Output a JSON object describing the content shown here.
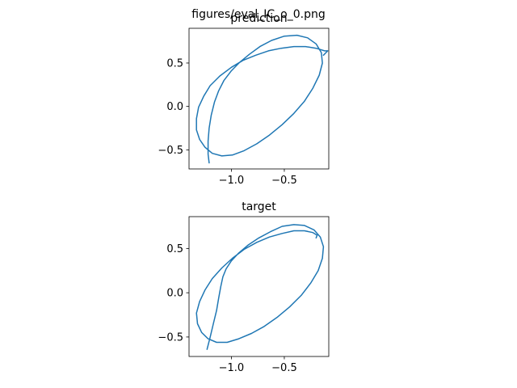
{
  "figure": {
    "suptitle": "figures/eval_IC_o_0.png"
  },
  "chart_data": [
    {
      "type": "line",
      "title": "prediction",
      "xlabel": "",
      "ylabel": "",
      "xlim": [
        -1.4,
        -0.08
      ],
      "ylim": [
        -0.72,
        0.9
      ],
      "xticks": [
        -1.0,
        -0.5
      ],
      "xtick_labels": [
        "−1.0",
        "−0.5"
      ],
      "yticks": [
        -0.5,
        0.0,
        0.5
      ],
      "ytick_labels": [
        "−0.5",
        "0.0",
        "0.5"
      ],
      "grid": false,
      "color": "#1f77b4",
      "series": [
        {
          "x": [
            -1.21,
            -1.22,
            -1.22,
            -1.21,
            -1.19,
            -1.16,
            -1.12,
            -1.07,
            -1.0,
            -0.92,
            -0.83,
            -0.73,
            -0.62,
            -0.5,
            -0.38,
            -0.28,
            -0.2,
            -0.15,
            -0.14,
            -0.17,
            -0.23,
            -0.31,
            -0.41,
            -0.52,
            -0.64,
            -0.76,
            -0.88,
            -0.99,
            -1.09,
            -1.18,
            -1.25,
            -1.3,
            -1.33,
            -1.33,
            -1.31,
            -1.26,
            -1.2,
            -1.11,
            -1.0,
            -0.89,
            -0.77,
            -0.65,
            -0.53,
            -0.41,
            -0.3,
            -0.2,
            -0.12,
            -0.09,
            -0.13
          ],
          "y": [
            -0.65,
            -0.55,
            -0.4,
            -0.25,
            -0.1,
            0.05,
            0.18,
            0.3,
            0.41,
            0.51,
            0.6,
            0.69,
            0.76,
            0.81,
            0.82,
            0.79,
            0.72,
            0.62,
            0.5,
            0.36,
            0.21,
            0.06,
            -0.08,
            -0.21,
            -0.33,
            -0.43,
            -0.51,
            -0.56,
            -0.57,
            -0.54,
            -0.47,
            -0.38,
            -0.27,
            -0.14,
            -0.01,
            0.12,
            0.24,
            0.35,
            0.45,
            0.53,
            0.59,
            0.64,
            0.67,
            0.69,
            0.69,
            0.67,
            0.64,
            0.64,
            0.59
          ]
        }
      ]
    },
    {
      "type": "line",
      "title": "target",
      "xlabel": "",
      "ylabel": "",
      "xlim": [
        -1.4,
        -0.08
      ],
      "ylim": [
        -0.72,
        0.86
      ],
      "xticks": [
        -1.0,
        -0.5
      ],
      "xtick_labels": [
        "−1.0",
        "−0.5"
      ],
      "yticks": [
        -0.5,
        0.0,
        0.5
      ],
      "ytick_labels": [
        "−0.5",
        "0.0",
        "0.5"
      ],
      "grid": false,
      "color": "#1f77b4",
      "series": [
        {
          "x": [
            -1.23,
            -1.2,
            -1.17,
            -1.14,
            -1.12,
            -1.1,
            -1.08,
            -1.05,
            -1.0,
            -0.93,
            -0.84,
            -0.74,
            -0.63,
            -0.52,
            -0.41,
            -0.31,
            -0.22,
            -0.16,
            -0.13,
            -0.14,
            -0.18,
            -0.25,
            -0.34,
            -0.45,
            -0.57,
            -0.69,
            -0.81,
            -0.93,
            -1.04,
            -1.14,
            -1.22,
            -1.28,
            -1.32,
            -1.33,
            -1.3,
            -1.25,
            -1.18,
            -1.09,
            -0.99,
            -0.88,
            -0.76,
            -0.64,
            -0.52,
            -0.41,
            -0.31,
            -0.23,
            -0.19,
            -0.2
          ],
          "y": [
            -0.64,
            -0.5,
            -0.35,
            -0.2,
            -0.06,
            0.07,
            0.18,
            0.27,
            0.36,
            0.45,
            0.54,
            0.62,
            0.69,
            0.75,
            0.77,
            0.76,
            0.71,
            0.63,
            0.52,
            0.39,
            0.25,
            0.11,
            -0.03,
            -0.16,
            -0.28,
            -0.38,
            -0.46,
            -0.52,
            -0.56,
            -0.56,
            -0.52,
            -0.45,
            -0.35,
            -0.23,
            -0.1,
            0.03,
            0.16,
            0.28,
            0.39,
            0.49,
            0.57,
            0.63,
            0.67,
            0.7,
            0.7,
            0.68,
            0.65,
            0.62
          ]
        }
      ]
    }
  ]
}
